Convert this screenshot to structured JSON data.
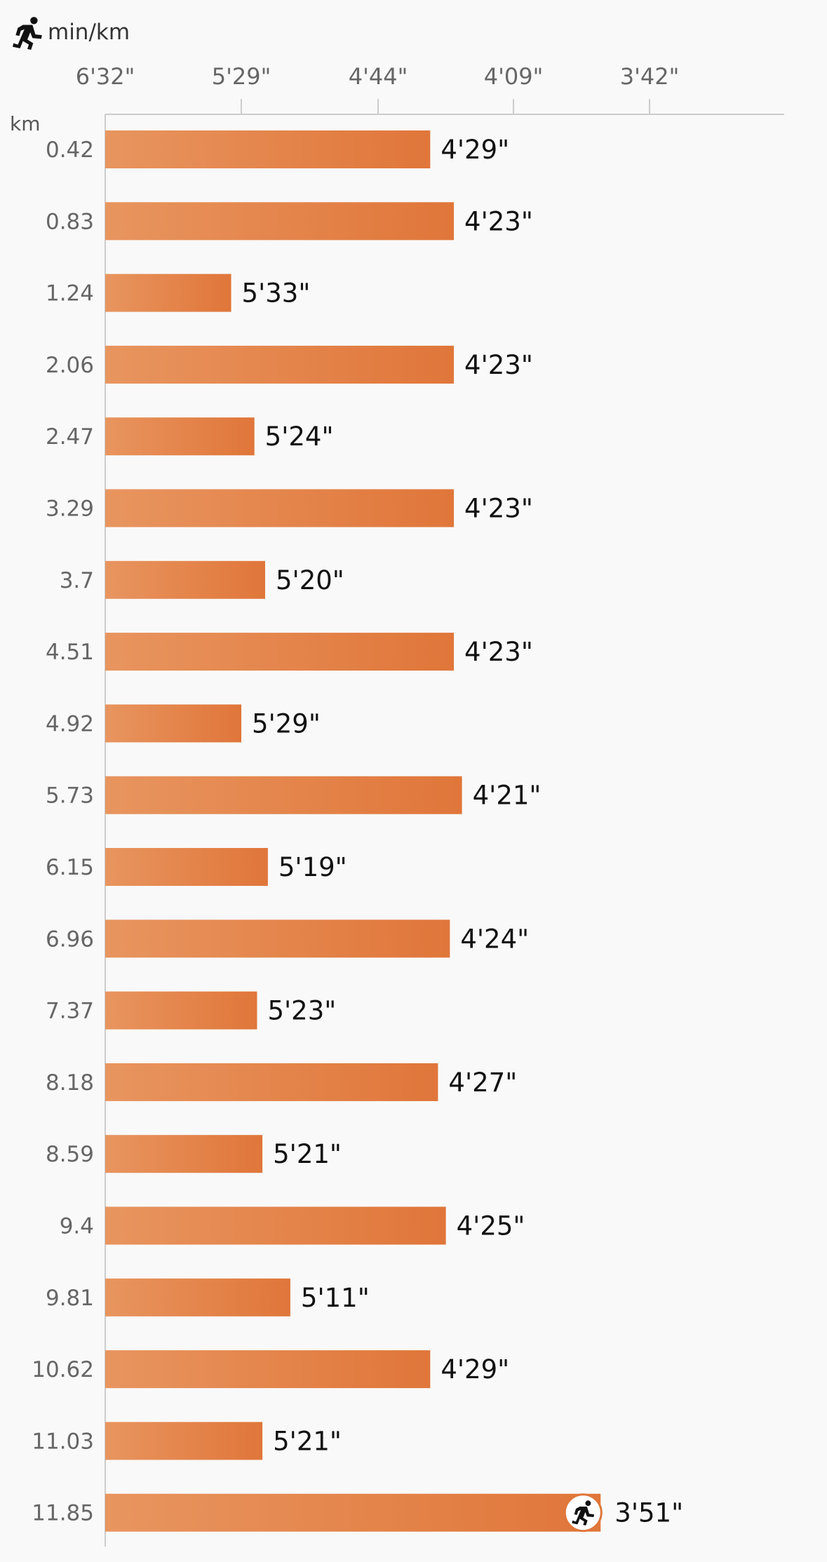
{
  "header": {
    "unit_icon": "runner-icon",
    "unit_label": "min/km",
    "category_unit": "km"
  },
  "colors": {
    "bar_start": "#e8955f",
    "bar_end": "#e0763a",
    "background": "#f9f9f9",
    "axis": "#cccccc",
    "badge_bg": "#ffffff",
    "badge_icon": "#111111"
  },
  "chart_data": {
    "type": "bar",
    "orientation": "horizontal",
    "xlabel": "min/km",
    "ylabel": "km",
    "x_ticks": [
      "6'32\"",
      "5'29\"",
      "4'44\"",
      "4'09\"",
      "3'42\""
    ],
    "x_ticks_seconds": [
      392,
      329,
      284,
      249,
      222
    ],
    "x_scale": "reciprocal",
    "grid": false,
    "categories": [
      "0.42",
      "0.83",
      "1.24",
      "2.06",
      "2.47",
      "3.29",
      "3.7",
      "4.51",
      "4.92",
      "5.73",
      "6.15",
      "6.96",
      "7.37",
      "8.18",
      "8.59",
      "9.4",
      "9.81",
      "10.62",
      "11.03",
      "11.85"
    ],
    "value_labels": [
      "4'29\"",
      "4'23\"",
      "5'33\"",
      "4'23\"",
      "5'24\"",
      "4'23\"",
      "5'20\"",
      "4'23\"",
      "5'29\"",
      "4'21\"",
      "5'19\"",
      "4'24\"",
      "5'23\"",
      "4'27\"",
      "5'21\"",
      "4'25\"",
      "5'11\"",
      "4'29\"",
      "5'21\"",
      "3'51\""
    ],
    "values_seconds": [
      269,
      263,
      333,
      263,
      324,
      263,
      320,
      263,
      329,
      261,
      319,
      264,
      323,
      267,
      321,
      265,
      311,
      269,
      321,
      231
    ],
    "highlight_index": 19,
    "highlight_icon": "runner-icon"
  }
}
